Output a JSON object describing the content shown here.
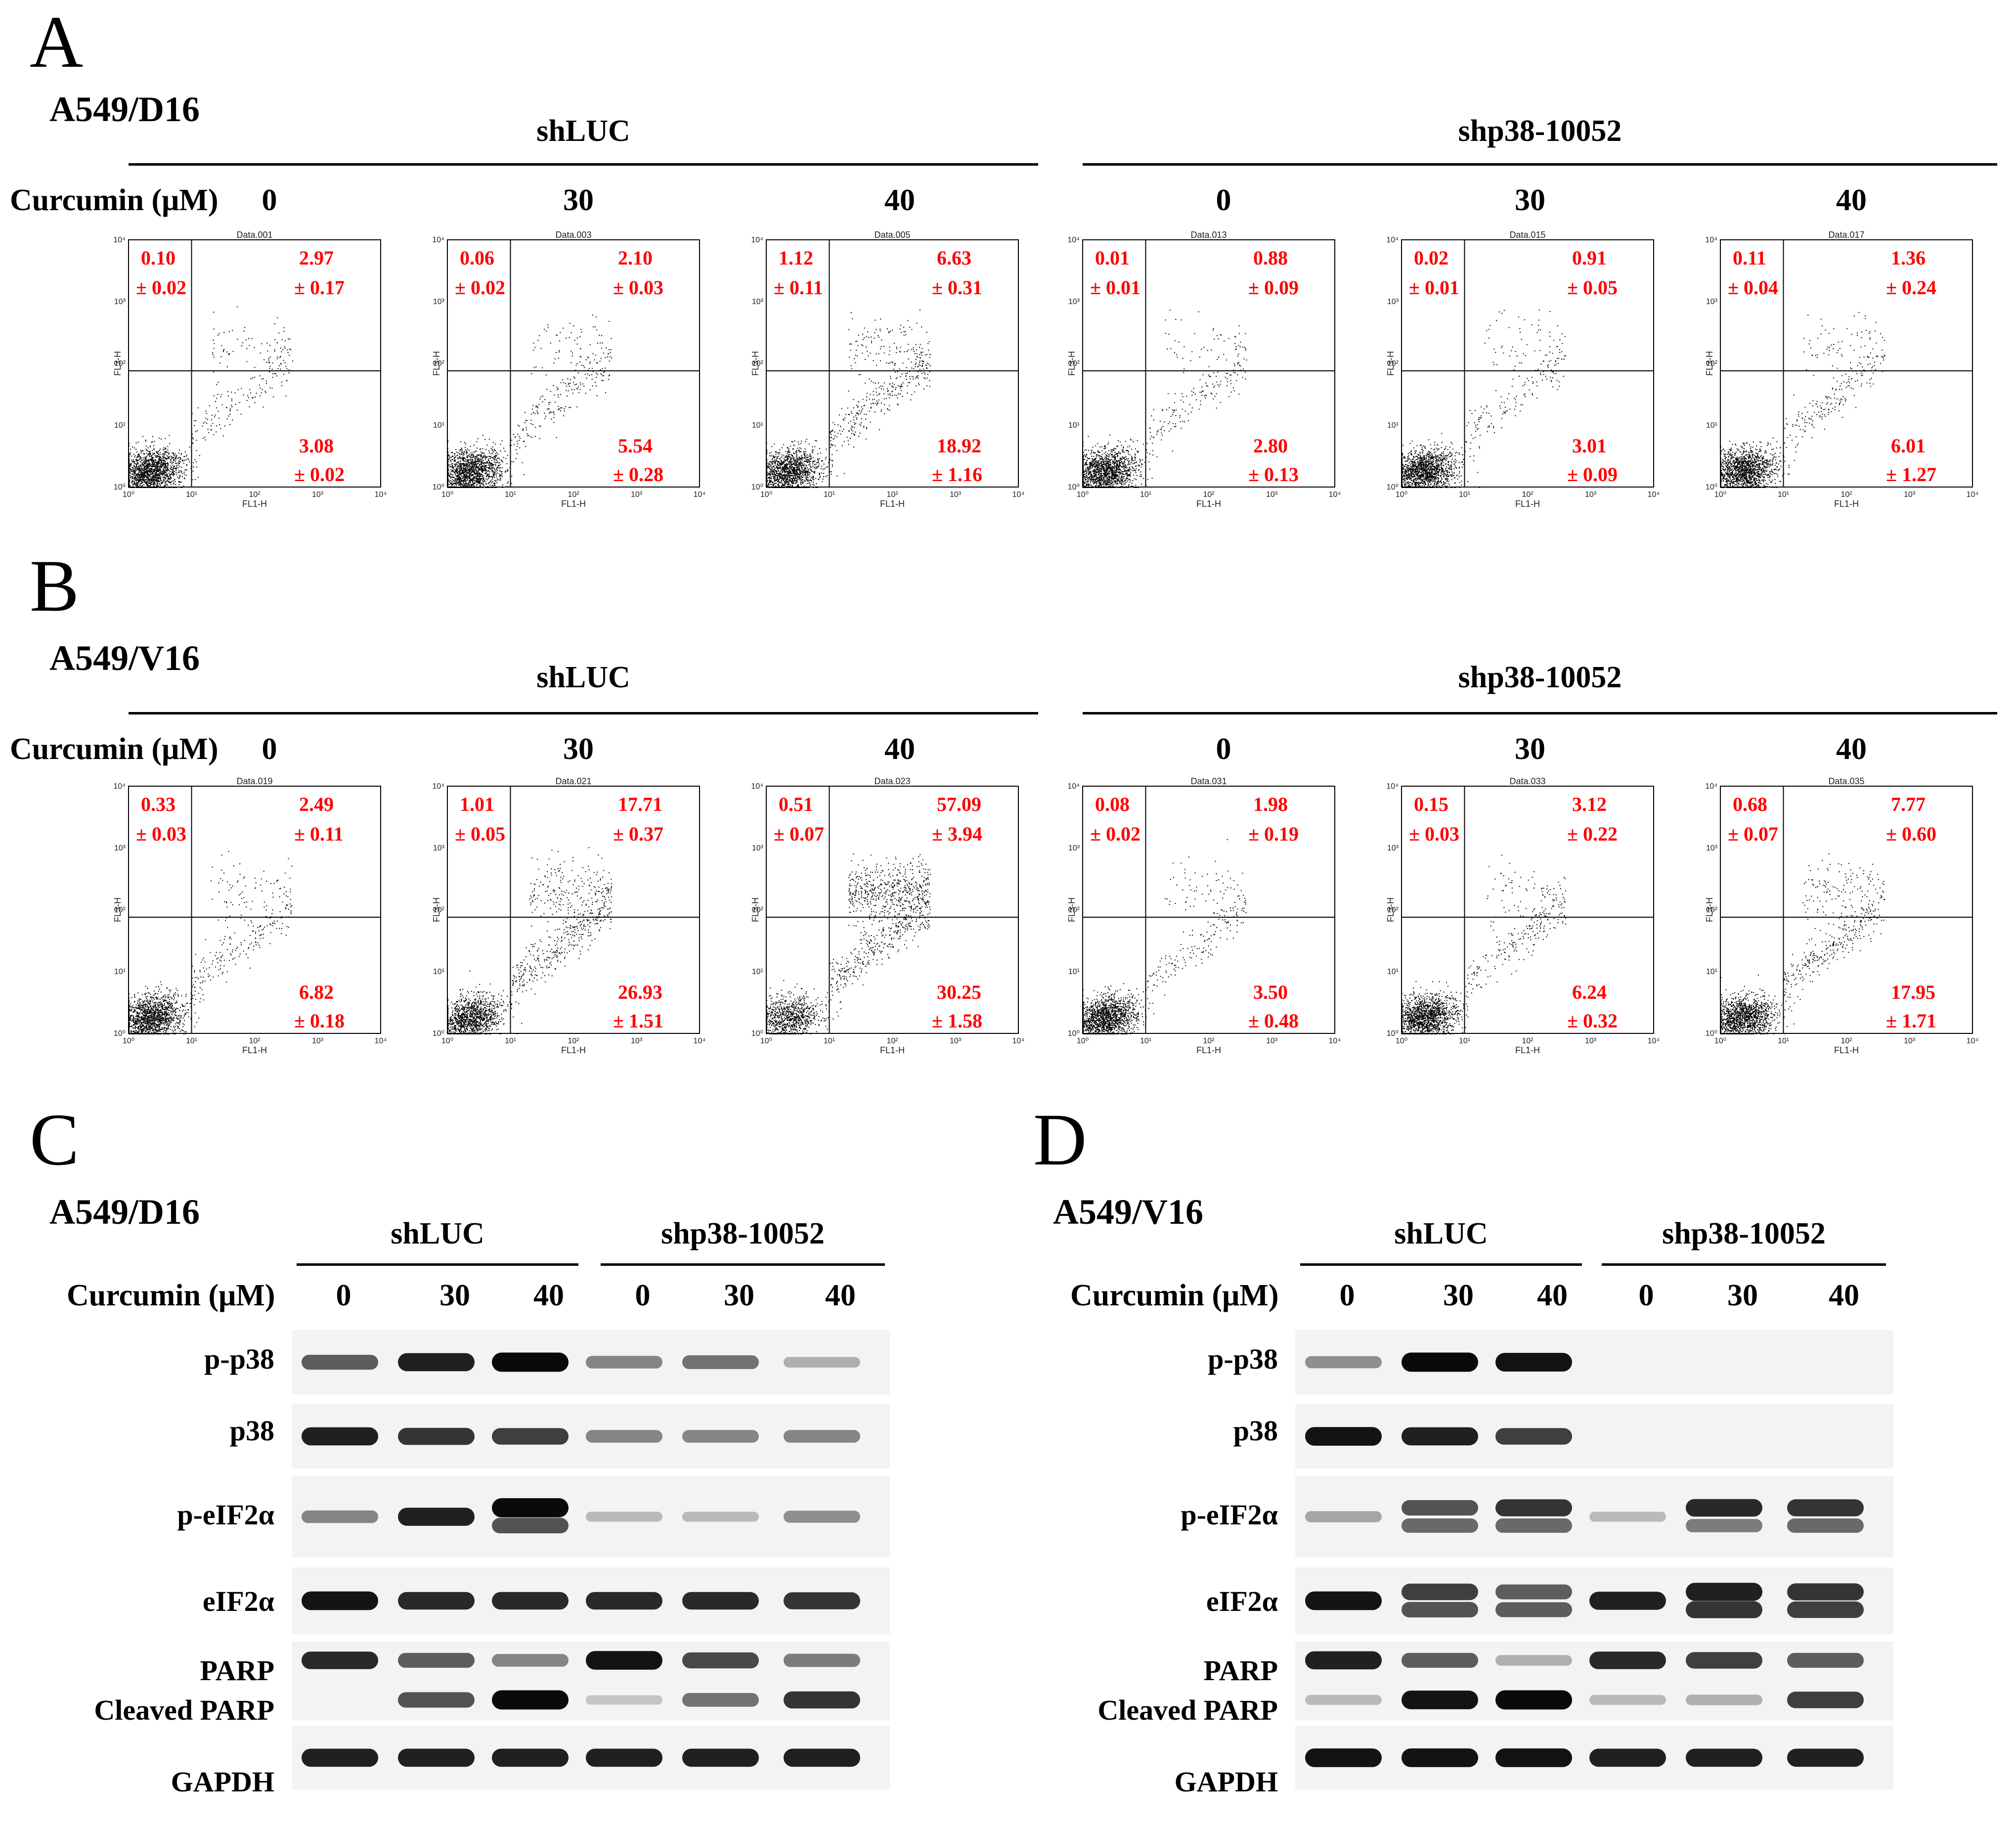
{
  "panels": {
    "A": {
      "letter": "A",
      "cell_line": "A549/D16",
      "group1": "shLUC",
      "group2": "shp38-10052",
      "curcumin_label": "Curcumin (μM)",
      "doses": [
        "0",
        "30",
        "40",
        "0",
        "30",
        "40"
      ]
    },
    "B": {
      "letter": "B",
      "cell_line": "A549/V16",
      "group1": "shLUC",
      "group2": "shp38-10052",
      "curcumin_label": "Curcumin (μM)",
      "doses": [
        "0",
        "30",
        "40",
        "0",
        "30",
        "40"
      ]
    },
    "C": {
      "letter": "C",
      "cell_line": "A549/D16",
      "group1": "shLUC",
      "group2": "shp38-10052",
      "curcumin_label": "Curcumin (μM)",
      "doses": [
        "0",
        "30",
        "40",
        "0",
        "30",
        "40"
      ],
      "rows": [
        "p-p38",
        "p38",
        "p-eIF2α",
        "eIF2α",
        "PARP",
        "Cleaved PARP",
        "GAPDH"
      ]
    },
    "D": {
      "letter": "D",
      "cell_line": "A549/V16",
      "group1": "shLUC",
      "group2": "shp38-10052",
      "curcumin_label": "Curcumin (μM)",
      "doses": [
        "0",
        "30",
        "40",
        "0",
        "30",
        "40"
      ],
      "rows": [
        "p-p38",
        "p38",
        "p-eIF2α",
        "eIF2α",
        "PARP",
        "Cleaved PARP",
        "GAPDH"
      ]
    }
  },
  "flow_plots": {
    "x_axis_label": "FL1-H",
    "y_axis_label": "FL3-H",
    "x_ticks": [
      "10⁰",
      "10¹",
      "10²",
      "10³",
      "10⁴"
    ],
    "y_ticks": [
      "10⁰",
      "10¹",
      "10²",
      "10³",
      "10⁴"
    ],
    "value_color": "#ff0000",
    "A": [
      {
        "title": "Data.001",
        "ul": "0.10",
        "ul_sd": "± 0.02",
        "ur": "2.97",
        "ur_sd": "± 0.17",
        "lr": "3.08",
        "lr_sd": "± 0.02"
      },
      {
        "title": "Data.003",
        "ul": "0.06",
        "ul_sd": "± 0.02",
        "ur": "2.10",
        "ur_sd": "± 0.03",
        "lr": "5.54",
        "lr_sd": "± 0.28"
      },
      {
        "title": "Data.005",
        "ul": "1.12",
        "ul_sd": "± 0.11",
        "ur": "6.63",
        "ur_sd": "± 0.31",
        "lr": "18.92",
        "lr_sd": "± 1.16"
      },
      {
        "title": "Data.013",
        "ul": "0.01",
        "ul_sd": "± 0.01",
        "ur": "0.88",
        "ur_sd": "± 0.09",
        "lr": "2.80",
        "lr_sd": "± 0.13"
      },
      {
        "title": "Data.015",
        "ul": "0.02",
        "ul_sd": "± 0.01",
        "ur": "0.91",
        "ur_sd": "± 0.05",
        "lr": "3.01",
        "lr_sd": "± 0.09"
      },
      {
        "title": "Data.017",
        "ul": "0.11",
        "ul_sd": "± 0.04",
        "ur": "1.36",
        "ur_sd": "± 0.24",
        "lr": "6.01",
        "lr_sd": "± 1.27"
      }
    ],
    "B": [
      {
        "title": "Data.019",
        "ul": "0.33",
        "ul_sd": "± 0.03",
        "ur": "2.49",
        "ur_sd": "± 0.11",
        "lr": "6.82",
        "lr_sd": "± 0.18"
      },
      {
        "title": "Data.021",
        "ul": "1.01",
        "ul_sd": "± 0.05",
        "ur": "17.71",
        "ur_sd": "± 0.37",
        "lr": "26.93",
        "lr_sd": "± 1.51"
      },
      {
        "title": "Data.023",
        "ul": "0.51",
        "ul_sd": "± 0.07",
        "ur": "57.09",
        "ur_sd": "± 3.94",
        "lr": "30.25",
        "lr_sd": "± 1.58"
      },
      {
        "title": "Data.031",
        "ul": "0.08",
        "ul_sd": "± 0.02",
        "ur": "1.98",
        "ur_sd": "± 0.19",
        "lr": "3.50",
        "lr_sd": "± 0.48"
      },
      {
        "title": "Data.033",
        "ul": "0.15",
        "ul_sd": "± 0.03",
        "ur": "3.12",
        "ur_sd": "± 0.22",
        "lr": "6.24",
        "lr_sd": "± 0.32"
      },
      {
        "title": "Data.035",
        "ul": "0.68",
        "ul_sd": "± 0.07",
        "ur": "7.77",
        "ur_sd": "± 0.60",
        "lr": "17.95",
        "lr_sd": "± 1.71"
      }
    ]
  }
}
